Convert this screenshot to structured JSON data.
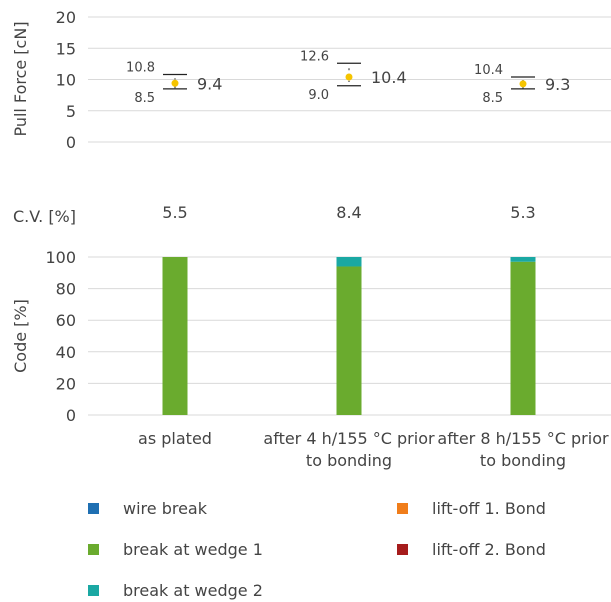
{
  "chart_data": [
    {
      "type": "scatter",
      "ylabel": "Pull Force [cN]",
      "ylim": [
        0,
        20
      ],
      "yticks": [
        0,
        5,
        10,
        15,
        20
      ],
      "grid": true,
      "categories": [
        "as plated",
        "after 4 h/155 °C prior to bonding",
        "after 8 h/155 °C prior to bonding"
      ],
      "mean": [
        9.4,
        10.4,
        9.3
      ],
      "max": [
        10.8,
        12.6,
        10.4
      ],
      "min": [
        8.5,
        9.0,
        8.5
      ],
      "mean_labels": [
        "9.4",
        "10.4",
        "9.3"
      ],
      "max_labels": [
        "10.8",
        "12.6",
        "10.4"
      ],
      "min_labels": [
        "8.5",
        "9.0",
        "8.5"
      ],
      "point_color": "#f5c400"
    },
    {
      "type": "table",
      "label": "C.V. [%]",
      "values": [
        "5.5",
        "8.4",
        "5.3"
      ]
    },
    {
      "type": "bar",
      "stacked": true,
      "ylabel": "Code [%]",
      "ylim": [
        0,
        100
      ],
      "yticks": [
        0,
        20,
        40,
        60,
        80,
        100
      ],
      "grid": true,
      "categories": [
        "as plated",
        "after 4 h/155 °C prior to bonding",
        "after 8 h/155 °C prior to bonding"
      ],
      "category_lines": [
        [
          "as plated"
        ],
        [
          "after 4 h/155 °C prior",
          "to bonding"
        ],
        [
          "after 8 h/155 °C prior",
          "to bonding"
        ]
      ],
      "series": [
        {
          "name": "wire break",
          "color": "#1f6fb2",
          "values": [
            0,
            0,
            0
          ]
        },
        {
          "name": "break at wedge 1",
          "color": "#6aab2e",
          "values": [
            100,
            94,
            97
          ]
        },
        {
          "name": "break at wedge 2",
          "color": "#1aa8a3",
          "values": [
            0,
            6,
            3
          ]
        },
        {
          "name": "lift-off 1. Bond",
          "color": "#f07d1a",
          "values": [
            0,
            0,
            0
          ]
        },
        {
          "name": "lift-off 2. Bond",
          "color": "#a61c1c",
          "values": [
            0,
            0,
            0
          ]
        }
      ],
      "legend_placement": "bottom"
    }
  ]
}
